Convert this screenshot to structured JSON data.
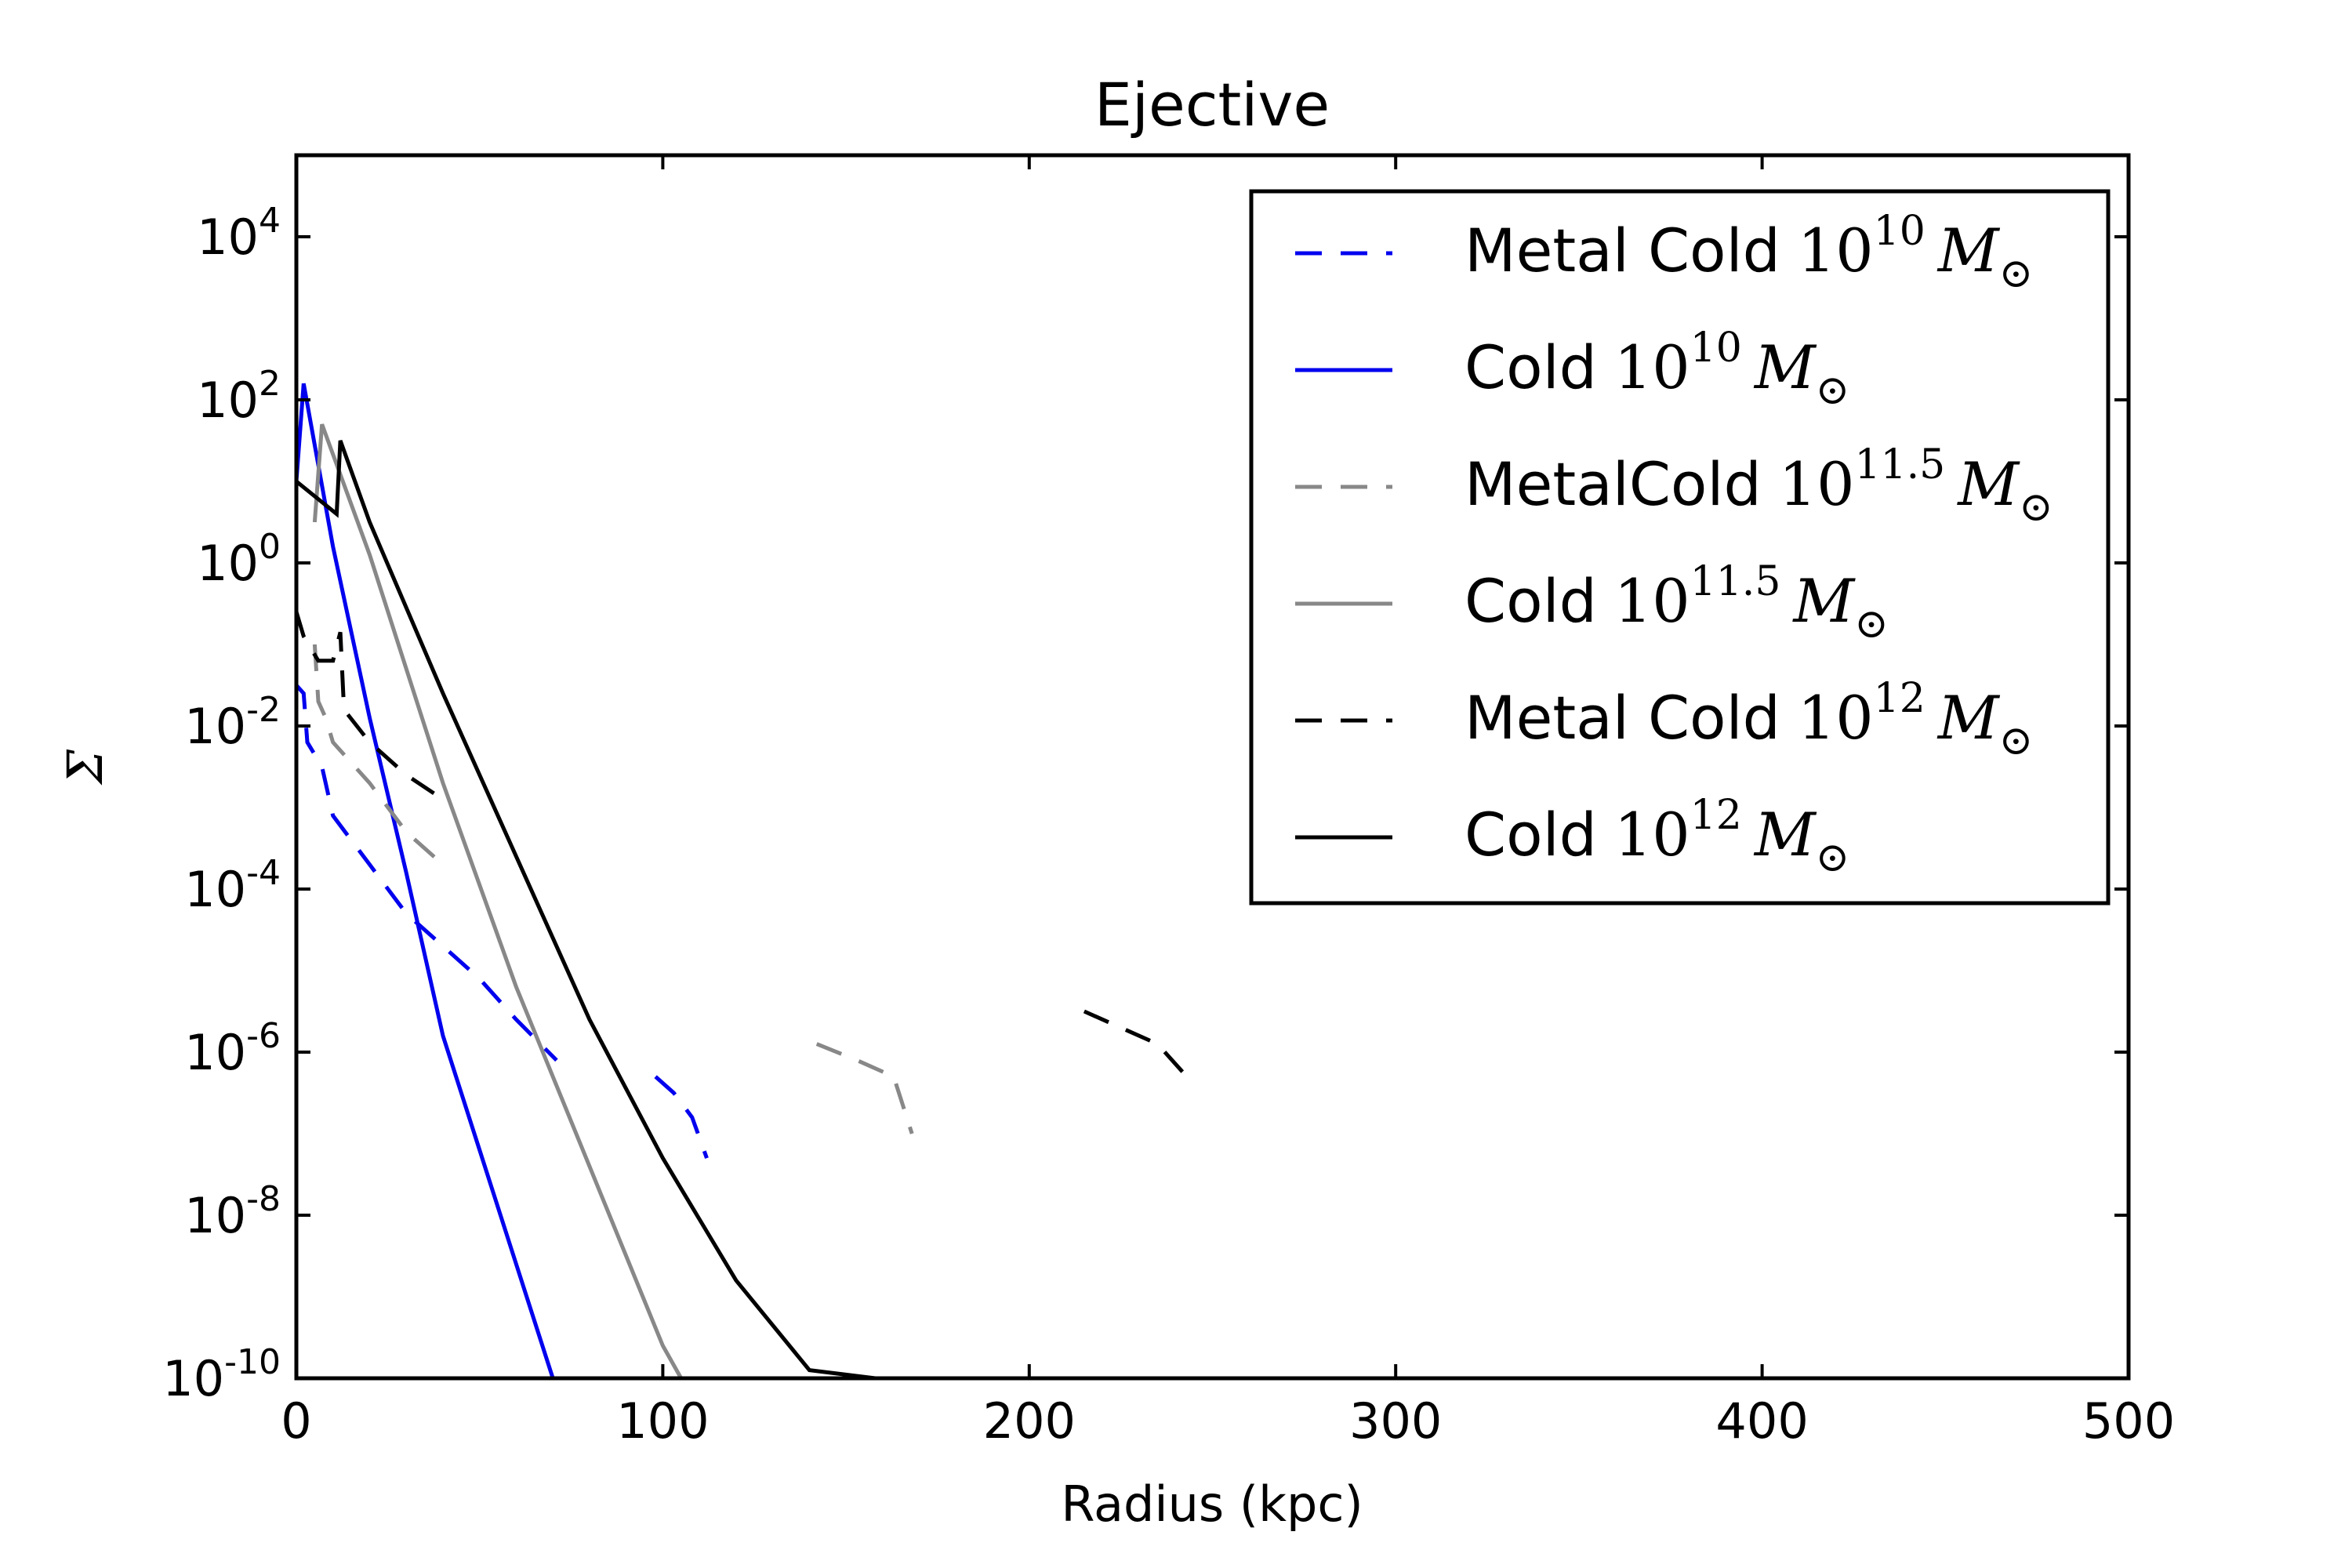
{
  "chart_data": {
    "type": "line",
    "title": "Ejective",
    "xlabel": "Radius (kpc)",
    "ylabel": "Σ",
    "xlim": [
      0,
      500
    ],
    "ylim_log10": [
      -10,
      5
    ],
    "yscale": "log",
    "grid": false,
    "legend_placement": "top-right",
    "x_ticks": [
      "0",
      "100",
      "200",
      "300",
      "400",
      "500"
    ],
    "y_ticks": [
      {
        "base": "10",
        "exp": "4"
      },
      {
        "base": "10",
        "exp": "2"
      },
      {
        "base": "10",
        "exp": "0"
      },
      {
        "base": "10",
        "exp": "-2"
      },
      {
        "base": "10",
        "exp": "-4"
      },
      {
        "base": "10",
        "exp": "-6"
      },
      {
        "base": "10",
        "exp": "-8"
      },
      {
        "base": "10",
        "exp": "-10"
      }
    ],
    "series": [
      {
        "name": "Metal Cold",
        "mass_exp": "10",
        "color": "#0000ee",
        "dash": "dashed",
        "segments": [
          [
            [
              0,
              -1.5
            ],
            [
              2,
              -1.6
            ],
            [
              3,
              -2.2
            ],
            [
              7,
              -2.5
            ],
            [
              10,
              -3.1
            ],
            [
              20,
              -3.7
            ],
            [
              30,
              -4.3
            ],
            [
              40,
              -4.7
            ],
            [
              50,
              -5.1
            ],
            [
              60,
              -5.6
            ],
            [
              71,
              -6.1
            ]
          ],
          [
            [
              98,
              -6.3
            ],
            [
              103,
              -6.5
            ],
            [
              108,
              -6.8
            ],
            [
              112,
              -7.3
            ]
          ]
        ]
      },
      {
        "name": "Cold",
        "mass_exp": "10",
        "color": "#0000ee",
        "dash": "solid",
        "segments": [
          [
            [
              0,
              1.0
            ],
            [
              2,
              2.2
            ],
            [
              10,
              0.2
            ],
            [
              20,
              -1.9
            ],
            [
              30,
              -3.8
            ],
            [
              40,
              -5.8
            ],
            [
              50,
              -7.2
            ],
            [
              60,
              -8.6
            ],
            [
              70,
              -10.0
            ]
          ]
        ]
      },
      {
        "name": "MetalCold",
        "mass_exp": "11.5",
        "color": "#888888",
        "dash": "dashed",
        "segments": [
          [
            [
              5,
              -1.0
            ],
            [
              6,
              -1.7
            ],
            [
              8,
              -1.9
            ],
            [
              10,
              -2.2
            ],
            [
              20,
              -2.7
            ],
            [
              30,
              -3.3
            ],
            [
              40,
              -3.7
            ]
          ],
          [
            [
              142,
              -5.9
            ],
            [
              153,
              -6.1
            ],
            [
              163,
              -6.3
            ],
            [
              168,
              -7.0
            ]
          ]
        ]
      },
      {
        "name": "Cold",
        "mass_exp": "11.5",
        "color": "#888888",
        "dash": "solid",
        "segments": [
          [
            [
              5,
              0.5
            ],
            [
              7,
              1.7
            ],
            [
              20,
              0.1
            ],
            [
              40,
              -2.7
            ],
            [
              60,
              -5.2
            ],
            [
              80,
              -7.4
            ],
            [
              100,
              -9.6
            ],
            [
              105,
              -10.0
            ]
          ]
        ]
      },
      {
        "name": "Metal Cold",
        "mass_exp": "12",
        "color": "#000000",
        "dash": "dashed",
        "segments": [
          [
            [
              0,
              -0.6
            ],
            [
              2,
              -0.9
            ],
            [
              6,
              -1.2
            ],
            [
              10,
              -1.2
            ],
            [
              12,
              -0.85
            ],
            [
              13,
              -1.8
            ],
            [
              20,
              -2.2
            ],
            [
              30,
              -2.6
            ],
            [
              40,
              -2.9
            ]
          ],
          [
            [
              215,
              -5.5
            ],
            [
              235,
              -5.9
            ],
            [
              245,
              -6.4
            ]
          ]
        ]
      },
      {
        "name": "Cold",
        "mass_exp": "12",
        "color": "#000000",
        "dash": "solid",
        "segments": [
          [
            [
              0,
              1.0
            ],
            [
              11,
              0.6
            ],
            [
              12,
              1.5
            ],
            [
              20,
              0.5
            ],
            [
              40,
              -1.6
            ],
            [
              60,
              -3.6
            ],
            [
              80,
              -5.6
            ],
            [
              100,
              -7.3
            ],
            [
              120,
              -8.8
            ],
            [
              140,
              -9.9
            ],
            [
              158,
              -10.0
            ]
          ]
        ]
      }
    ]
  }
}
